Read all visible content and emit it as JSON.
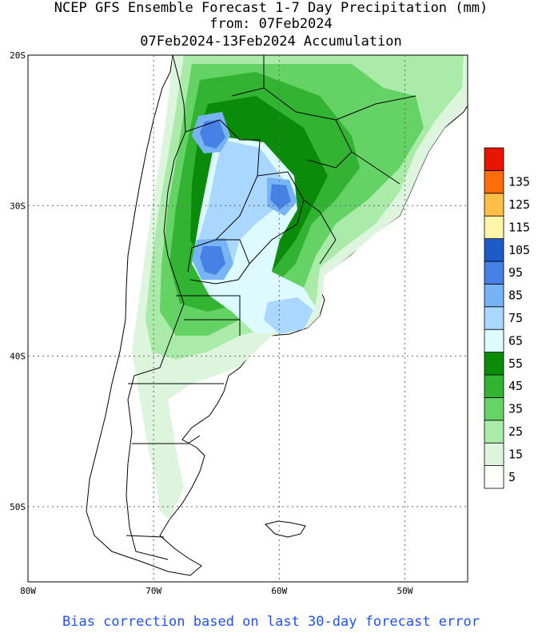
{
  "title": {
    "line1": "NCEP GFS Ensemble Forecast 1-7 Day Precipitation (mm)",
    "line2": "from: 07Feb2024",
    "line3": "07Feb2024-13Feb2024 Accumulation"
  },
  "footnote": "Bias correction based on last 30-day forecast error",
  "map": {
    "lat_labels": [
      "20S",
      "30S",
      "40S",
      "50S"
    ],
    "lon_labels": [
      "80W",
      "70W",
      "60W",
      "50W"
    ],
    "lat_range": [
      -55,
      -20
    ],
    "lon_range": [
      -80,
      -45
    ],
    "grid": true
  },
  "legend": {
    "unit": "mm",
    "levels": [
      {
        "label": "5",
        "color": "#fafffa"
      },
      {
        "label": "15",
        "color": "#dcf5dc"
      },
      {
        "label": "25",
        "color": "#aaebaa"
      },
      {
        "label": "35",
        "color": "#64d264"
      },
      {
        "label": "45",
        "color": "#32b432"
      },
      {
        "label": "55",
        "color": "#0a8c0a"
      },
      {
        "label": "65",
        "color": "#dcfaff"
      },
      {
        "label": "75",
        "color": "#aad7ff"
      },
      {
        "label": "85",
        "color": "#78b4f5"
      },
      {
        "label": "95",
        "color": "#4682e6"
      },
      {
        "label": "105",
        "color": "#1e5ac8"
      },
      {
        "label": "115",
        "color": "#fff5aa"
      },
      {
        "label": "125",
        "color": "#ffbe46"
      },
      {
        "label": "135",
        "color": "#ff6e0a"
      },
      {
        "label": "",
        "color": "#e61400"
      }
    ]
  }
}
